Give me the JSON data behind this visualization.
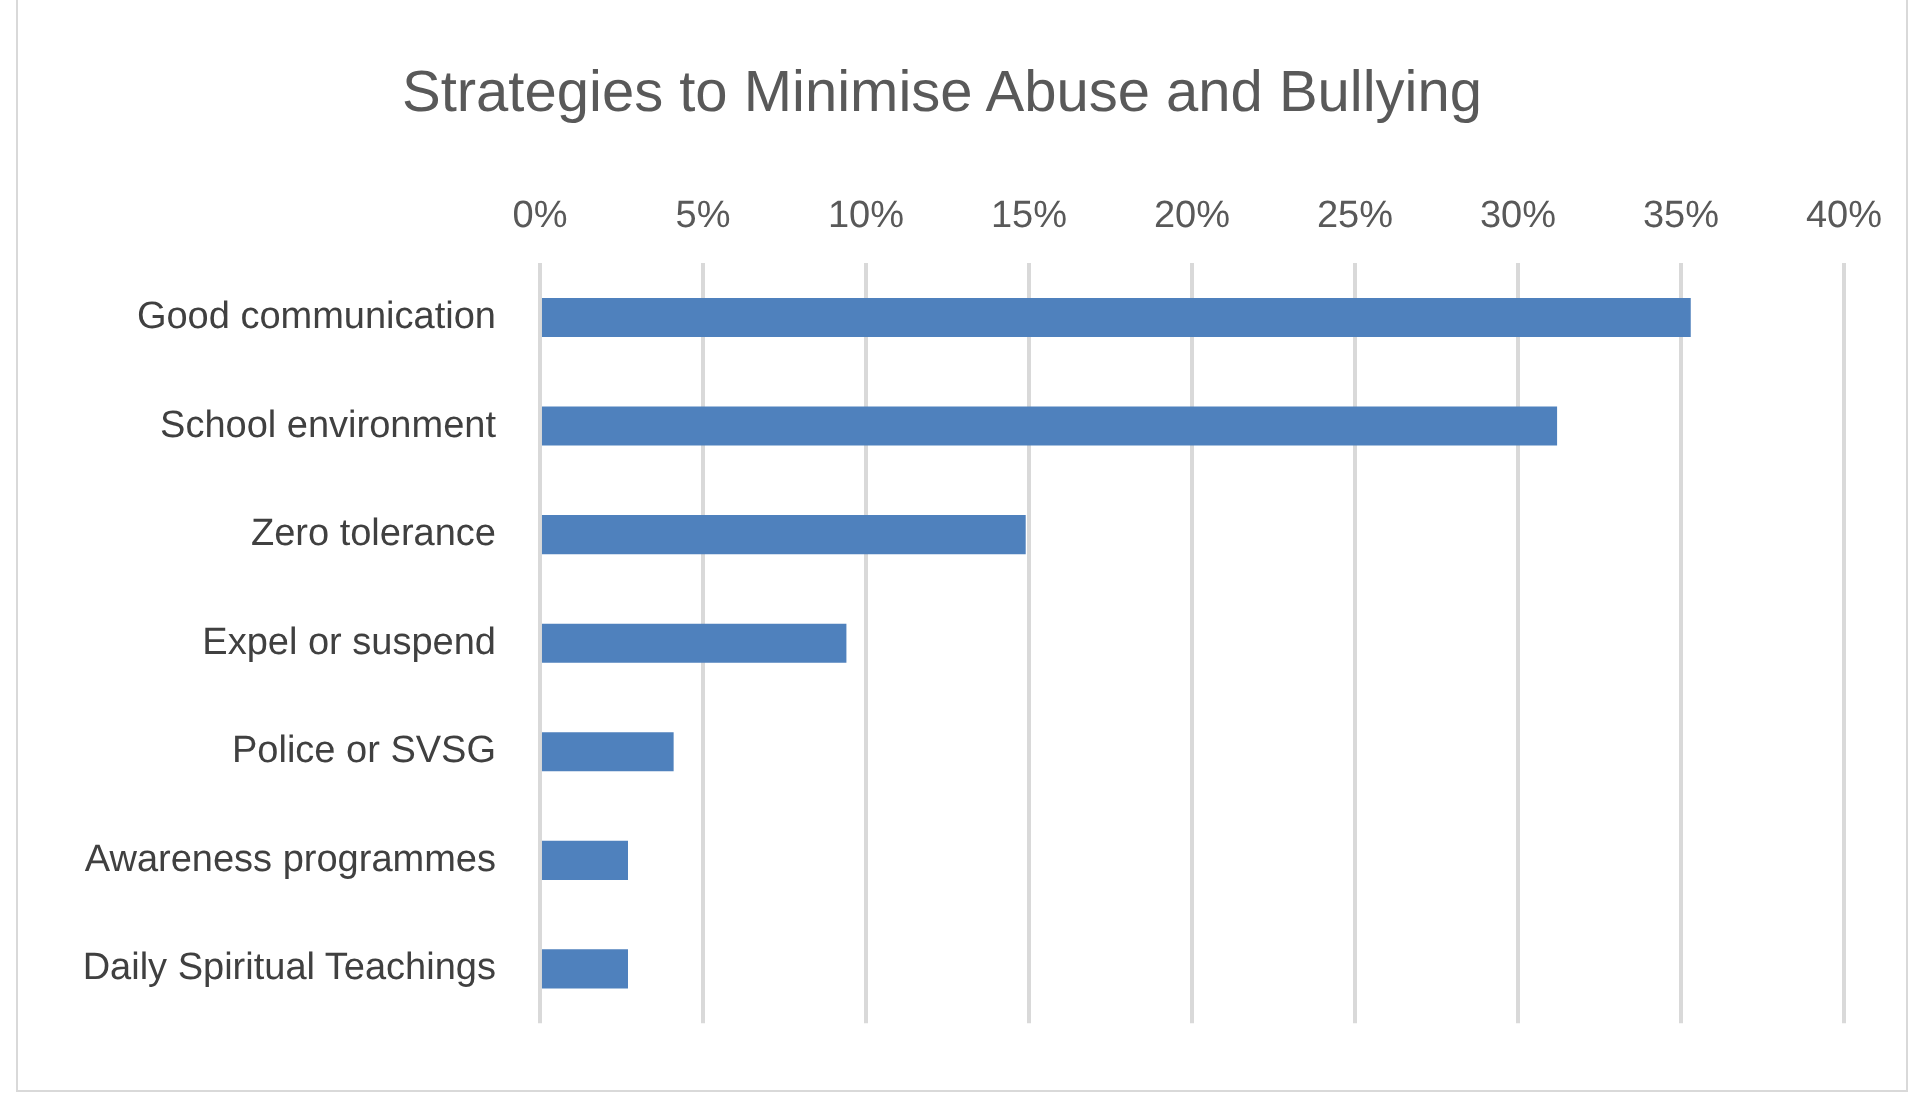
{
  "chart_data": {
    "type": "bar",
    "orientation": "horizontal",
    "title": "Strategies to Minimise Abuse and Bullying",
    "categories": [
      "Good communication",
      "School environment",
      "Zero tolerance",
      "Expel or suspend",
      "Police or SVSG",
      "Awareness programmes",
      "Daily Spiritual Teachings"
    ],
    "values": [
      35.3,
      31.2,
      14.9,
      9.4,
      4.1,
      2.7,
      2.7
    ],
    "color": "#4f81bd",
    "xlim": [
      0,
      40
    ],
    "xticks": [
      {
        "value": 0,
        "label": "0%"
      },
      {
        "value": 5,
        "label": "5%"
      },
      {
        "value": 10,
        "label": "10%"
      },
      {
        "value": 15,
        "label": "15%"
      },
      {
        "value": 20,
        "label": "20%"
      },
      {
        "value": 25,
        "label": "25%"
      },
      {
        "value": 30,
        "label": "30%"
      },
      {
        "value": 35,
        "label": "35%"
      },
      {
        "value": 40,
        "label": "40%"
      }
    ],
    "grid": "x",
    "legend": false
  }
}
